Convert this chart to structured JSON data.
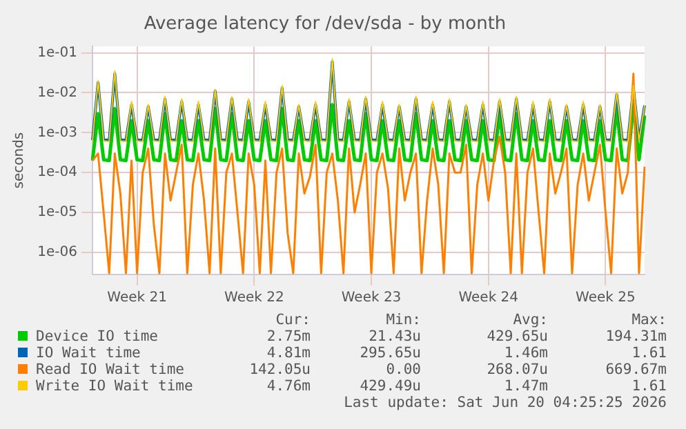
{
  "chart_data": {
    "type": "line",
    "title": "Average latency for /dev/sda - by month",
    "ylabel": "seconds",
    "log": "y",
    "grid": true,
    "legend": "bottom",
    "categories": [
      null,
      null,
      null,
      null,
      null,
      null,
      null,
      null,
      "Week 21",
      null,
      null,
      null,
      null,
      null,
      null,
      null,
      null,
      null,
      null,
      null,
      null,
      null,
      null,
      null,
      null,
      null,
      null,
      null,
      null,
      "Week 22",
      null,
      null,
      null,
      null,
      null,
      null,
      null,
      null,
      null,
      null,
      null,
      null,
      null,
      null,
      null,
      null,
      null,
      null,
      null,
      null,
      "Week 23",
      null,
      null,
      null,
      null,
      null,
      null,
      null,
      null,
      null,
      null,
      null,
      null,
      null,
      null,
      null,
      null,
      null,
      null,
      null,
      null,
      "Week 24",
      null,
      null,
      null,
      null,
      null,
      null,
      null,
      null,
      null,
      null,
      null,
      null,
      null,
      null,
      null,
      null,
      null,
      null,
      null,
      null,
      "Week 25",
      null,
      null,
      null,
      null,
      null,
      null,
      null
    ],
    "ylim": [
      2.8e-07,
      0.145
    ],
    "yticks": [
      {
        "value": 1e-06,
        "label": "1e-06"
      },
      {
        "value": 1e-05,
        "label": "1e-05"
      },
      {
        "value": 0.0001,
        "label": "1e-04"
      },
      {
        "value": 0.001,
        "label": "1e-03"
      },
      {
        "value": 0.01,
        "label": "1e-02"
      },
      {
        "value": 0.1,
        "label": "1e-01"
      }
    ],
    "series": [
      {
        "name": "Device IO time",
        "color": "#00cc00",
        "values": [
          0.0002,
          0.003,
          0.00021,
          0.0002,
          0.004,
          0.00021,
          0.0002,
          0.002,
          0.00021,
          0.0002,
          0.002,
          0.00021,
          0.0002,
          0.003,
          0.00021,
          0.0002,
          0.002,
          0.00021,
          0.0002,
          0.002,
          0.00021,
          0.0002,
          0.004,
          0.00021,
          0.0002,
          0.003,
          0.00021,
          0.0002,
          0.002,
          0.00021,
          0.0002,
          0.002,
          0.00021,
          0.0002,
          0.004,
          0.00021,
          0.0002,
          0.002,
          0.00021,
          0.0002,
          0.002,
          0.00021,
          0.0002,
          0.005,
          0.00021,
          0.0002,
          0.002,
          0.00021,
          0.0002,
          0.003,
          0.00021,
          0.0002,
          0.002,
          0.00021,
          0.0002,
          0.002,
          0.00021,
          0.0002,
          0.003,
          0.00021,
          0.0002,
          0.002,
          0.00021,
          0.0002,
          0.002,
          0.00021,
          0.0002,
          0.002,
          0.00021,
          0.0002,
          0.002,
          0.00021,
          0.0002,
          0.003,
          0.00021,
          0.0002,
          0.003,
          0.00021,
          0.0002,
          0.002,
          0.00021,
          0.0002,
          0.002,
          0.00021,
          0.0002,
          0.002,
          0.00021,
          0.0002,
          0.002,
          0.00021,
          0.0002,
          0.002,
          0.00021,
          0.0002,
          0.004,
          0.00021,
          0.0002,
          0.005,
          0.00021,
          0.0027
        ]
      },
      {
        "name": "IO Wait time",
        "color": "#0066b3",
        "values": [
          0.00065,
          0.018,
          0.00066,
          0.00065,
          0.03,
          0.00066,
          0.00065,
          0.005,
          0.00066,
          0.00065,
          0.0045,
          0.00066,
          0.00065,
          0.007,
          0.00066,
          0.00065,
          0.006,
          0.00066,
          0.00065,
          0.005,
          0.00066,
          0.00065,
          0.011,
          0.00066,
          0.00065,
          0.007,
          0.00066,
          0.00065,
          0.006,
          0.00066,
          0.00065,
          0.005,
          0.00066,
          0.00065,
          0.013,
          0.00066,
          0.00065,
          0.0045,
          0.00066,
          0.00065,
          0.005,
          0.00066,
          0.00065,
          0.06,
          0.00066,
          0.00065,
          0.006,
          0.00066,
          0.00065,
          0.007,
          0.00066,
          0.00065,
          0.005,
          0.00066,
          0.00065,
          0.0045,
          0.00066,
          0.00065,
          0.007,
          0.00066,
          0.00065,
          0.005,
          0.00066,
          0.00065,
          0.006,
          0.00066,
          0.00065,
          0.0045,
          0.00066,
          0.00065,
          0.005,
          0.00066,
          0.00065,
          0.006,
          0.00066,
          0.00065,
          0.007,
          0.00066,
          0.00065,
          0.005,
          0.00066,
          0.00065,
          0.006,
          0.00066,
          0.00065,
          0.0045,
          0.00066,
          0.00065,
          0.005,
          0.00066,
          0.00065,
          0.0045,
          0.00066,
          0.00065,
          0.009,
          0.00066,
          0.00065,
          0.013,
          0.00066,
          0.00481
        ]
      },
      {
        "name": "Read IO Wait time",
        "color": "#ff8000",
        "values": [
          0.0002,
          0.0003,
          1e-05,
          3e-07,
          0.0003,
          3e-05,
          3e-07,
          0.0002,
          3e-07,
          0.0001,
          0.0004,
          5e-06,
          3e-07,
          0.0003,
          2e-05,
          0.0001,
          0.0005,
          3e-07,
          5e-05,
          0.0003,
          2e-05,
          3e-07,
          0.0004,
          3e-07,
          0.0001,
          0.0003,
          1e-05,
          3e-07,
          0.0003,
          5e-05,
          3e-07,
          0.0002,
          3e-07,
          0.0001,
          0.0004,
          3e-06,
          3e-07,
          0.0003,
          3e-05,
          8e-05,
          0.0005,
          3e-07,
          0.0001,
          0.0003,
          2e-05,
          3e-07,
          0.0004,
          1e-05,
          5e-05,
          0.0003,
          3e-07,
          0.0001,
          0.0003,
          4e-05,
          3e-07,
          0.0004,
          2e-05,
          0.0001,
          0.0003,
          3e-07,
          2e-05,
          0.0004,
          5e-05,
          3e-07,
          0.0003,
          0.0001,
          0.0001,
          0.0005,
          3e-07,
          5e-05,
          0.0003,
          2e-05,
          0.0002,
          0.0008,
          0.0001,
          3e-07,
          0.0003,
          3e-07,
          0.0001,
          0.0004,
          1e-05,
          3e-07,
          0.0003,
          3e-05,
          0.0001,
          0.0004,
          3e-07,
          5e-05,
          0.0003,
          2e-05,
          0.0001,
          0.0005,
          1e-05,
          3e-07,
          0.0004,
          3e-05,
          0.0001,
          0.03,
          3e-07,
          0.00014
        ]
      },
      {
        "name": "Write IO Wait time",
        "color": "#ffcc00",
        "values": [
          0.0006,
          0.02,
          0.00062,
          0.0006,
          0.035,
          0.00062,
          0.0006,
          0.006,
          0.00062,
          0.0006,
          0.005,
          0.00062,
          0.0006,
          0.008,
          0.00062,
          0.0006,
          0.007,
          0.00062,
          0.0006,
          0.006,
          0.00062,
          0.0006,
          0.012,
          0.00062,
          0.0006,
          0.008,
          0.00062,
          0.0006,
          0.007,
          0.00062,
          0.0006,
          0.006,
          0.00062,
          0.0006,
          0.015,
          0.00062,
          0.0006,
          0.005,
          0.00062,
          0.0006,
          0.006,
          0.00062,
          0.0006,
          0.07,
          0.00062,
          0.0006,
          0.007,
          0.00062,
          0.0006,
          0.008,
          0.00062,
          0.0006,
          0.006,
          0.00062,
          0.0006,
          0.005,
          0.00062,
          0.0006,
          0.008,
          0.00062,
          0.0006,
          0.006,
          0.00062,
          0.0006,
          0.007,
          0.00062,
          0.0006,
          0.005,
          0.00062,
          0.0006,
          0.006,
          0.00062,
          0.0006,
          0.007,
          0.00062,
          0.0006,
          0.008,
          0.00062,
          0.0006,
          0.006,
          0.00062,
          0.0006,
          0.007,
          0.00062,
          0.0006,
          0.005,
          0.00062,
          0.0006,
          0.006,
          0.00062,
          0.0006,
          0.005,
          0.00062,
          0.0006,
          0.01,
          0.00062,
          0.0006,
          0.015,
          0.00062,
          0.00476
        ]
      }
    ],
    "annotations": [
      "Cur:",
      "Min:",
      "Avg:",
      "Max:",
      "2.75m",
      "21.43u",
      "429.65u",
      "194.31m",
      "4.81m",
      "295.65u",
      "1.46m",
      "1.61",
      "142.05u",
      "0.00",
      "268.07u",
      "669.67m",
      "4.76m",
      "429.49u",
      "1.47m",
      "1.61",
      "Last update: Sat Jun 20 04:25:25 2026"
    ]
  }
}
